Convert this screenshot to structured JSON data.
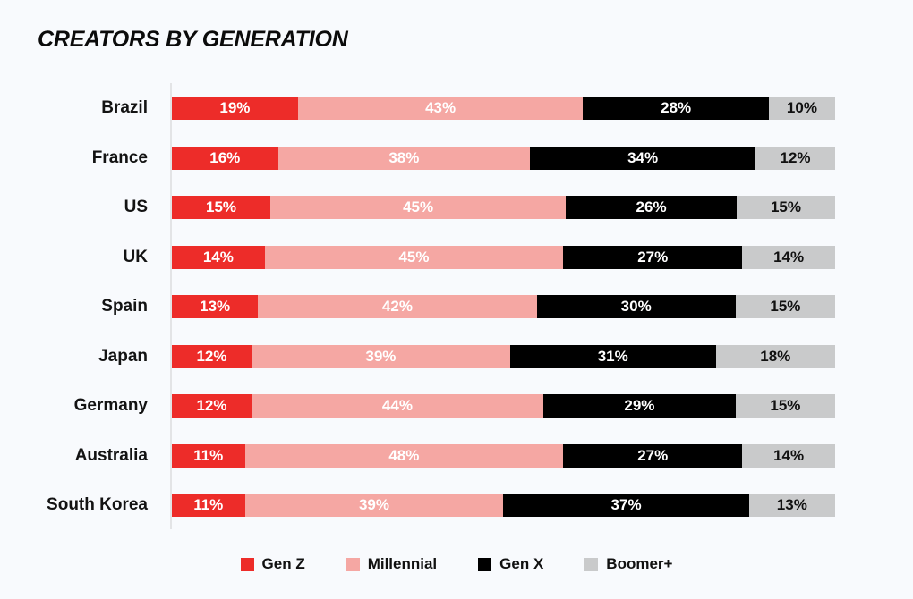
{
  "page": {
    "background_color": "#F8FAFD",
    "axis_line_color": "#E3E4E6"
  },
  "chart_data": {
    "type": "bar",
    "orientation": "horizontal",
    "stacked": true,
    "title": "CREATORS BY GENERATION",
    "xlabel": "",
    "ylabel": "",
    "xlim": [
      0,
      100
    ],
    "grid": false,
    "legend_position": "bottom",
    "value_suffix": "%",
    "categories": [
      "Brazil",
      "France",
      "US",
      "UK",
      "Spain",
      "Japan",
      "Germany",
      "Australia",
      "South Korea"
    ],
    "series": [
      {
        "name": "Gen Z",
        "color": "#ED2C29",
        "text_color": "#FFFFFF",
        "values": [
          19,
          16,
          15,
          14,
          13,
          12,
          12,
          11,
          11
        ]
      },
      {
        "name": "Millennial",
        "color": "#F5A7A3",
        "text_color": "#FFFFFF",
        "values": [
          43,
          38,
          45,
          45,
          42,
          39,
          44,
          48,
          39
        ]
      },
      {
        "name": "Gen X",
        "color": "#000000",
        "text_color": "#FFFFFF",
        "values": [
          28,
          34,
          26,
          27,
          30,
          31,
          29,
          27,
          37
        ]
      },
      {
        "name": "Boomer+",
        "color": "#C9CACB",
        "text_color": "#111111",
        "values": [
          10,
          12,
          15,
          14,
          15,
          18,
          15,
          14,
          13
        ]
      }
    ]
  }
}
